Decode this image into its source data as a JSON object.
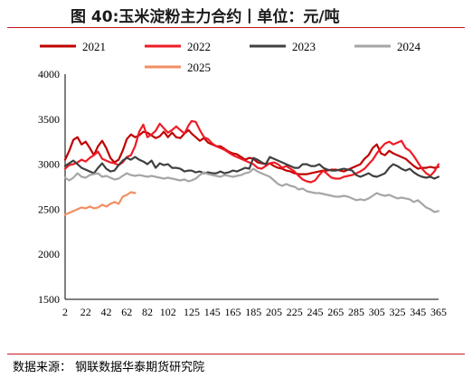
{
  "figure": {
    "title": "图 40:玉米淀粉主力合约丨单位：元/吨",
    "source": "数据来源： 钢联数据华泰期货研究院"
  },
  "chart_data": {
    "type": "line",
    "title": "图 40:玉米淀粉主力合约丨单位：元/吨",
    "xlabel": "",
    "ylabel": "",
    "ylim": [
      1500,
      4000
    ],
    "xlim": [
      2,
      365
    ],
    "yticks": [
      "1500",
      "2000",
      "2500",
      "3000",
      "3500",
      "4000"
    ],
    "xticks": [
      "2",
      "22",
      "42",
      "62",
      "82",
      "102",
      "125",
      "145",
      "165",
      "185",
      "205",
      "225",
      "245",
      "265",
      "285",
      "305",
      "325",
      "345",
      "365"
    ],
    "grid": false,
    "legend_position": "top",
    "series": [
      {
        "name": "2021",
        "color": "#c00000",
        "x": [
          2,
          6,
          10,
          14,
          18,
          22,
          26,
          30,
          34,
          38,
          42,
          46,
          50,
          54,
          58,
          62,
          66,
          70,
          74,
          78,
          82,
          86,
          90,
          94,
          98,
          102,
          106,
          110,
          114,
          118,
          122,
          125,
          129,
          133,
          137,
          141,
          145,
          149,
          153,
          157,
          161,
          165,
          169,
          173,
          177,
          181,
          185,
          189,
          193,
          197,
          201,
          205,
          209,
          213,
          217,
          221,
          225,
          229,
          233,
          237,
          241,
          245,
          249,
          253,
          257,
          261,
          265,
          269,
          273,
          277,
          281,
          285,
          289,
          293,
          297,
          301,
          305,
          309,
          313,
          317,
          321,
          325,
          329,
          333,
          337,
          341,
          345,
          349,
          353,
          357,
          361,
          365
        ],
        "y": [
          3050,
          3150,
          3270,
          3300,
          3220,
          3250,
          3180,
          3100,
          3200,
          3260,
          3180,
          3070,
          3020,
          3050,
          3150,
          3280,
          3330,
          3300,
          3320,
          3360,
          3350,
          3320,
          3290,
          3310,
          3360,
          3300,
          3350,
          3300,
          3290,
          3340,
          3380,
          3340,
          3300,
          3260,
          3290,
          3240,
          3220,
          3200,
          3200,
          3170,
          3140,
          3120,
          3110,
          3080,
          3050,
          3070,
          3060,
          3020,
          3010,
          3000,
          3010,
          2980,
          2960,
          2950,
          2930,
          2920,
          2900,
          2890,
          2890,
          2890,
          2900,
          2910,
          2920,
          2930,
          2930,
          2940,
          2940,
          2930,
          2920,
          2940,
          2960,
          2980,
          3000,
          3060,
          3100,
          3180,
          3220,
          3120,
          3100,
          3150,
          3120,
          3100,
          3080,
          3060,
          3020,
          2980,
          2950,
          2960,
          2960,
          2970,
          2960,
          2970
        ]
      },
      {
        "name": "2022",
        "color": "#ee1c25",
        "x": [
          2,
          6,
          10,
          14,
          18,
          22,
          26,
          30,
          34,
          38,
          42,
          46,
          50,
          54,
          58,
          62,
          66,
          70,
          74,
          78,
          82,
          86,
          90,
          94,
          98,
          102,
          106,
          110,
          114,
          118,
          122,
          125,
          129,
          133,
          137,
          141,
          145,
          149,
          153,
          157,
          161,
          165,
          169,
          173,
          177,
          181,
          185,
          189,
          193,
          197,
          201,
          205,
          209,
          213,
          217,
          221,
          225,
          229,
          233,
          237,
          241,
          245,
          249,
          253,
          257,
          261,
          265,
          269,
          273,
          277,
          281,
          285,
          289,
          293,
          297,
          301,
          305,
          309,
          313,
          317,
          321,
          325,
          329,
          333,
          337,
          341,
          345,
          349,
          353,
          357,
          361,
          365
        ],
        "y": [
          2950,
          2990,
          3000,
          3020,
          3050,
          3030,
          3070,
          3100,
          3140,
          3060,
          3040,
          3020,
          3010,
          2990,
          3020,
          3080,
          3100,
          3200,
          3360,
          3440,
          3300,
          3330,
          3370,
          3450,
          3400,
          3350,
          3380,
          3420,
          3380,
          3340,
          3430,
          3480,
          3470,
          3380,
          3300,
          3280,
          3230,
          3200,
          3180,
          3160,
          3130,
          3100,
          3080,
          3060,
          3040,
          3020,
          3000,
          2960,
          2950,
          2980,
          3010,
          3020,
          3000,
          2960,
          2980,
          2950,
          2920,
          2870,
          2830,
          2810,
          2800,
          2820,
          2880,
          2930,
          2890,
          2850,
          2840,
          2840,
          2860,
          2870,
          2880,
          2900,
          2920,
          2950,
          3000,
          3050,
          3120,
          3180,
          3230,
          3250,
          3220,
          3240,
          3260,
          3180,
          3150,
          3090,
          3020,
          2950,
          2900,
          2870,
          2920,
          3000
        ]
      },
      {
        "name": "2023",
        "color": "#404040",
        "x": [
          2,
          6,
          10,
          14,
          18,
          22,
          26,
          30,
          34,
          38,
          42,
          46,
          50,
          54,
          58,
          62,
          66,
          70,
          74,
          78,
          82,
          86,
          90,
          94,
          98,
          102,
          106,
          110,
          114,
          118,
          122,
          125,
          129,
          133,
          137,
          141,
          145,
          149,
          153,
          157,
          161,
          165,
          169,
          173,
          177,
          181,
          185,
          189,
          193,
          197,
          201,
          205,
          209,
          213,
          217,
          221,
          225,
          229,
          233,
          237,
          241,
          245,
          249,
          253,
          257,
          261,
          265,
          269,
          273,
          277,
          281,
          285,
          289,
          293,
          297,
          301,
          305,
          309,
          313,
          317,
          321,
          325,
          329,
          333,
          337,
          341,
          345,
          349,
          353,
          357,
          361,
          365
        ],
        "y": [
          2980,
          3010,
          3040,
          3000,
          2960,
          2940,
          2920,
          2900,
          2960,
          3010,
          2950,
          2920,
          2930,
          2990,
          3040,
          3070,
          3050,
          3080,
          3050,
          3030,
          3000,
          3040,
          2960,
          3010,
          2990,
          3000,
          2960,
          2960,
          2950,
          2920,
          2930,
          2930,
          2910,
          2920,
          2900,
          2910,
          2900,
          2900,
          2920,
          2900,
          2910,
          2930,
          2920,
          2940,
          2960,
          2950,
          3070,
          3050,
          3020,
          3000,
          3080,
          3060,
          3040,
          3020,
          3000,
          2980,
          2960,
          2960,
          3000,
          3000,
          2980,
          2980,
          3000,
          2960,
          2940,
          2930,
          2930,
          2940,
          2950,
          2940,
          2930,
          2880,
          2860,
          2880,
          2900,
          2870,
          2860,
          2880,
          2900,
          2960,
          3000,
          2980,
          2950,
          2930,
          2950,
          2910,
          2880,
          2860,
          2850,
          2860,
          2840,
          2860
        ]
      },
      {
        "name": "2024",
        "color": "#a6a6a6",
        "x": [
          2,
          6,
          10,
          14,
          18,
          22,
          26,
          30,
          34,
          38,
          42,
          46,
          50,
          54,
          58,
          62,
          66,
          70,
          74,
          78,
          82,
          86,
          90,
          94,
          98,
          102,
          106,
          110,
          114,
          118,
          122,
          125,
          129,
          133,
          137,
          141,
          145,
          149,
          153,
          157,
          161,
          165,
          169,
          173,
          177,
          181,
          185,
          189,
          193,
          197,
          201,
          205,
          209,
          213,
          217,
          221,
          225,
          229,
          233,
          237,
          241,
          245,
          249,
          253,
          257,
          261,
          265,
          269,
          273,
          277,
          281,
          285,
          289,
          293,
          297,
          301,
          305,
          309,
          313,
          317,
          321,
          325,
          329,
          333,
          337,
          341,
          345,
          349,
          353,
          357,
          361,
          365
        ],
        "y": [
          2850,
          2820,
          2850,
          2900,
          2860,
          2850,
          2880,
          2890,
          2900,
          2860,
          2870,
          2850,
          2830,
          2840,
          2870,
          2900,
          2880,
          2870,
          2880,
          2870,
          2860,
          2870,
          2860,
          2850,
          2840,
          2850,
          2840,
          2830,
          2820,
          2830,
          2810,
          2820,
          2840,
          2880,
          2910,
          2890,
          2880,
          2870,
          2860,
          2880,
          2870,
          2860,
          2870,
          2880,
          2900,
          2910,
          2950,
          2920,
          2900,
          2880,
          2860,
          2820,
          2780,
          2760,
          2780,
          2760,
          2750,
          2720,
          2730,
          2700,
          2690,
          2680,
          2680,
          2670,
          2660,
          2650,
          2640,
          2640,
          2650,
          2640,
          2620,
          2600,
          2610,
          2600,
          2620,
          2650,
          2680,
          2660,
          2650,
          2660,
          2640,
          2620,
          2630,
          2620,
          2610,
          2580,
          2600,
          2560,
          2520,
          2500,
          2470,
          2480
        ]
      },
      {
        "name": "2025",
        "color": "#f28e63",
        "x": [
          2,
          6,
          10,
          14,
          18,
          22,
          26,
          30,
          34,
          38,
          42,
          46,
          50,
          54,
          58,
          62,
          66,
          70
        ],
        "y": [
          2440,
          2460,
          2480,
          2500,
          2520,
          2510,
          2530,
          2510,
          2520,
          2550,
          2530,
          2560,
          2580,
          2560,
          2640,
          2660,
          2690,
          2680
        ]
      }
    ]
  }
}
